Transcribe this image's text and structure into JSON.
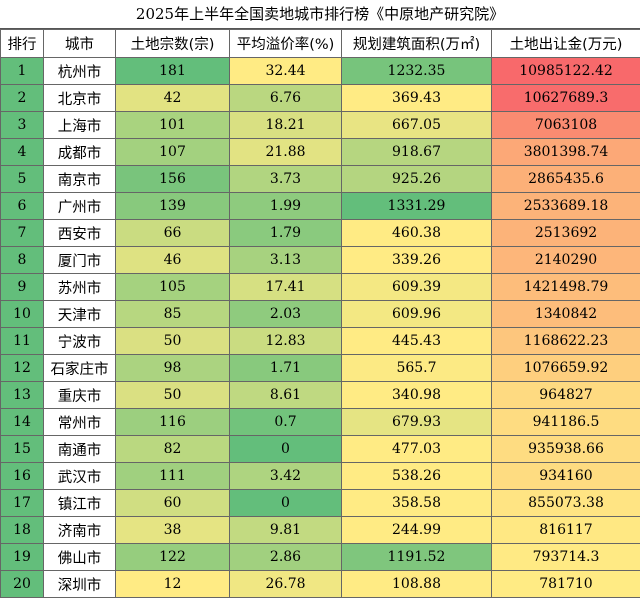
{
  "title": "2025年上半年全国卖地城市排行榜《中原地产研究院》",
  "headers": [
    "排行",
    "城市",
    "土地宗数(宗)",
    "平均溢价率(%)",
    "规划建筑面积(万㎡)",
    "土地出让金(万元)"
  ],
  "rows": [
    {
      "rank": "1",
      "city": "杭州市",
      "parcels": "181",
      "premium": "32.44",
      "area": "1232.35",
      "revenue": "10985122.42"
    },
    {
      "rank": "2",
      "city": "北京市",
      "parcels": "42",
      "premium": "6.76",
      "area": "369.43",
      "revenue": "10627689.3"
    },
    {
      "rank": "3",
      "city": "上海市",
      "parcels": "101",
      "premium": "18.21",
      "area": "667.05",
      "revenue": "7063108"
    },
    {
      "rank": "4",
      "city": "成都市",
      "parcels": "107",
      "premium": "21.88",
      "area": "918.67",
      "revenue": "3801398.74"
    },
    {
      "rank": "5",
      "city": "南京市",
      "parcels": "156",
      "premium": "3.73",
      "area": "925.26",
      "revenue": "2865435.6"
    },
    {
      "rank": "6",
      "city": "广州市",
      "parcels": "139",
      "premium": "1.99",
      "area": "1331.29",
      "revenue": "2533689.18"
    },
    {
      "rank": "7",
      "city": "西安市",
      "parcels": "66",
      "premium": "1.79",
      "area": "460.38",
      "revenue": "2513692"
    },
    {
      "rank": "8",
      "city": "厦门市",
      "parcels": "46",
      "premium": "3.13",
      "area": "339.26",
      "revenue": "2140290"
    },
    {
      "rank": "9",
      "city": "苏州市",
      "parcels": "105",
      "premium": "17.41",
      "area": "609.39",
      "revenue": "1421498.79"
    },
    {
      "rank": "10",
      "city": "天津市",
      "parcels": "85",
      "premium": "2.03",
      "area": "609.96",
      "revenue": "1340842"
    },
    {
      "rank": "11",
      "city": "宁波市",
      "parcels": "50",
      "premium": "12.83",
      "area": "445.43",
      "revenue": "1168622.23"
    },
    {
      "rank": "12",
      "city": "石家庄市",
      "parcels": "98",
      "premium": "1.71",
      "area": "565.7",
      "revenue": "1076659.92"
    },
    {
      "rank": "13",
      "city": "重庆市",
      "parcels": "50",
      "premium": "8.61",
      "area": "340.98",
      "revenue": "964827"
    },
    {
      "rank": "14",
      "city": "常州市",
      "parcels": "116",
      "premium": "0.7",
      "area": "679.93",
      "revenue": "941186.5"
    },
    {
      "rank": "15",
      "city": "南通市",
      "parcels": "82",
      "premium": "0",
      "area": "477.03",
      "revenue": "935938.66"
    },
    {
      "rank": "16",
      "city": "武汉市",
      "parcels": "111",
      "premium": "3.42",
      "area": "538.26",
      "revenue": "934160"
    },
    {
      "rank": "17",
      "city": "镇江市",
      "parcels": "60",
      "premium": "0",
      "area": "358.58",
      "revenue": "855073.38"
    },
    {
      "rank": "18",
      "city": "济南市",
      "parcels": "38",
      "premium": "9.81",
      "area": "244.99",
      "revenue": "816117"
    },
    {
      "rank": "19",
      "city": "佛山市",
      "parcels": "122",
      "premium": "2.86",
      "area": "1191.52",
      "revenue": "793714.3"
    },
    {
      "rank": "20",
      "city": "深圳市",
      "parcels": "12",
      "premium": "26.78",
      "area": "108.88",
      "revenue": "781710"
    }
  ],
  "colors": {
    "rank_bg": "#63be7b",
    "green_low": "#63be7b",
    "yellow_mid": "#ffeb84",
    "red_high": "#f8696b",
    "city_bg": "#ffffff",
    "border": "#666666"
  }
}
